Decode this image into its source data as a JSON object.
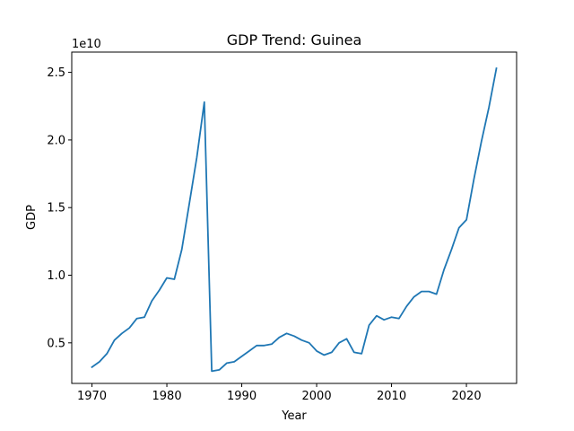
{
  "chart_data": {
    "type": "line",
    "title": "GDP Trend: Guinea",
    "xlabel": "Year",
    "ylabel": "GDP",
    "y_offset_label": "1e10",
    "xlim": [
      1967.3,
      2026.7
    ],
    "ylim": [
      0.2,
      2.65
    ],
    "y_unit_scale": 10000000000,
    "grid": false,
    "x_ticks": [
      1970,
      1980,
      1990,
      2000,
      2010,
      2020
    ],
    "y_ticks": [
      0.5,
      1.0,
      1.5,
      2.0,
      2.5
    ],
    "y_tick_labels": [
      "0.5",
      "1.0",
      "1.5",
      "2.0",
      "2.5"
    ],
    "series_color": "#1f77b4",
    "series": [
      {
        "x": [
          1970,
          1971,
          1972,
          1973,
          1974,
          1975,
          1976,
          1977,
          1978,
          1979,
          1980,
          1981,
          1982,
          1983,
          1984,
          1985,
          1986,
          1987,
          1988,
          1989,
          1990,
          1991,
          1992,
          1993,
          1994,
          1995,
          1996,
          1997,
          1998,
          1999,
          2000,
          2001,
          2002,
          2003,
          2004,
          2005,
          2006,
          2007,
          2008,
          2009,
          2010,
          2011,
          2012,
          2013,
          2014,
          2015,
          2016,
          2017,
          2018,
          2019,
          2020,
          2021,
          2022,
          2023,
          2024
        ],
        "values": [
          0.32,
          0.36,
          0.42,
          0.52,
          0.57,
          0.61,
          0.68,
          0.69,
          0.81,
          0.89,
          0.98,
          0.97,
          1.19,
          1.53,
          1.87,
          2.28,
          0.29,
          0.3,
          0.35,
          0.36,
          0.4,
          0.44,
          0.48,
          0.48,
          0.49,
          0.54,
          0.57,
          0.55,
          0.52,
          0.5,
          0.44,
          0.41,
          0.43,
          0.5,
          0.53,
          0.43,
          0.42,
          0.63,
          0.7,
          0.67,
          0.69,
          0.68,
          0.77,
          0.84,
          0.88,
          0.88,
          0.86,
          1.04,
          1.19,
          1.35,
          1.41,
          1.71,
          1.99,
          2.24,
          2.53
        ]
      }
    ]
  }
}
